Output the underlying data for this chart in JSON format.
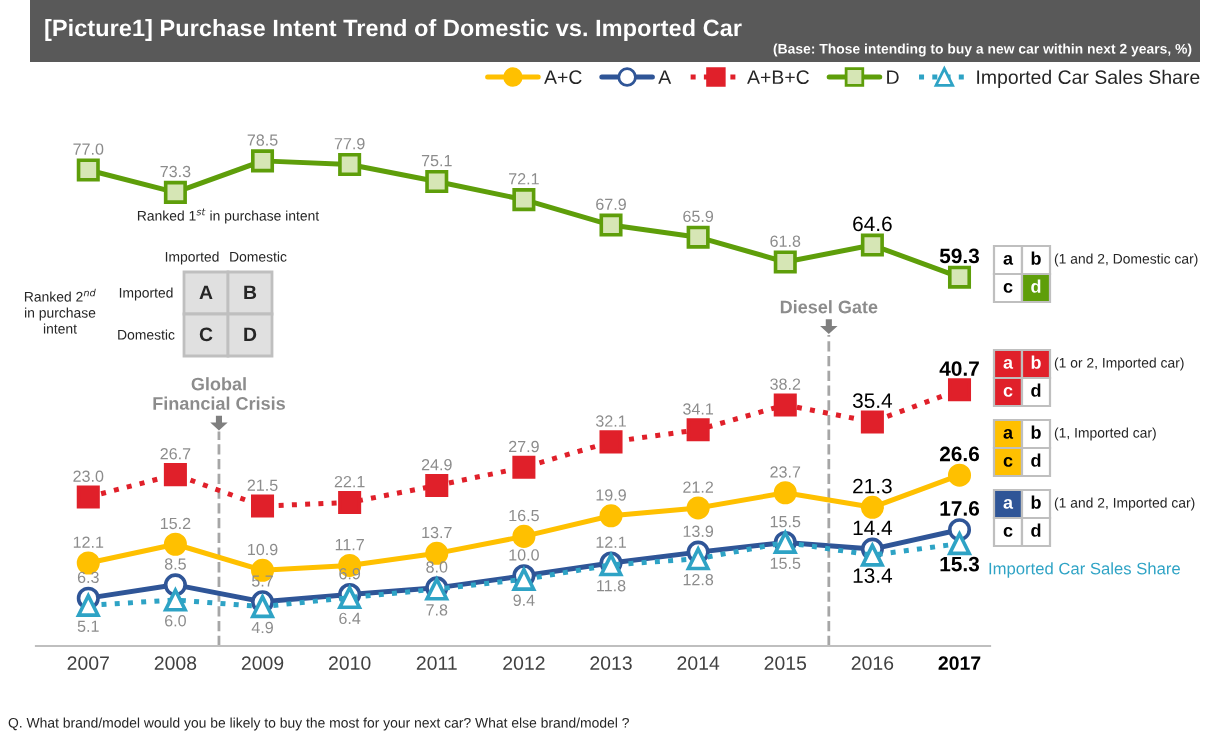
{
  "chart_data": {
    "type": "line",
    "title": "[Picture1] Purchase Intent Trend of Domestic vs. Imported Car",
    "subtitle": "(Base: Those intending to buy a new car within next 2 years, %)",
    "x": [
      2007,
      2008,
      2009,
      2010,
      2011,
      2012,
      2013,
      2014,
      2015,
      2016,
      2017
    ],
    "xlim": [
      2006.4,
      2017.35
    ],
    "xticks": [
      2007,
      2008,
      2009,
      2010,
      2011,
      2012,
      2013,
      2014,
      2015,
      2016,
      2017
    ],
    "tick_labels": "x",
    "grid": false,
    "legend": "top right",
    "series": [
      {
        "name": "A+C",
        "color": "#ffc000",
        "marker": "circle",
        "line_style": "solid",
        "values": [
          12.1,
          15.2,
          10.9,
          11.7,
          13.7,
          16.5,
          19.9,
          21.2,
          23.7,
          21.3,
          26.6
        ],
        "value_labels": [
          "12.1",
          "15.2",
          "10.9",
          "11.7",
          "13.7",
          "16.5",
          "19.9",
          "21.2",
          "23.7",
          "21.3",
          "26.6"
        ]
      },
      {
        "name": "A",
        "color": "#2f5597",
        "marker": "circle",
        "line_style": "solid",
        "values": [
          6.3,
          8.5,
          5.7,
          6.9,
          8.0,
          10.0,
          12.1,
          13.9,
          15.5,
          14.4,
          17.6
        ],
        "value_labels": [
          "6.3",
          "8.5",
          "5.7",
          "6.9",
          "8.0",
          "10.0",
          "12.1",
          "13.9",
          "15.5",
          "14.4",
          "17.6"
        ]
      },
      {
        "name": "A+B+C",
        "color": "#e0202a",
        "marker": "square",
        "line_style": "dotted",
        "values": [
          23.0,
          26.7,
          21.5,
          22.1,
          24.9,
          27.9,
          32.1,
          34.1,
          38.2,
          35.4,
          40.7
        ],
        "value_labels": [
          "23.0",
          "26.7",
          "21.5",
          "22.1",
          "24.9",
          "27.9",
          "32.1",
          "34.1",
          "38.2",
          "35.4",
          "40.7"
        ]
      },
      {
        "name": "D",
        "color": "#5e9e0a",
        "marker": "square",
        "line_style": "solid",
        "values": [
          77.0,
          73.3,
          78.5,
          77.9,
          75.1,
          72.1,
          67.9,
          65.9,
          61.8,
          64.6,
          59.3
        ],
        "value_labels": [
          "77.0",
          "73.3",
          "78.5",
          "77.9",
          "75.1",
          "72.1",
          "67.9",
          "65.9",
          "61.8",
          "64.6",
          "59.3"
        ]
      },
      {
        "name": "Imported Car Sales Share",
        "color": "#2ea3c5",
        "marker": "triangle",
        "line_style": "dotted",
        "values": [
          5.1,
          6.0,
          4.9,
          6.4,
          7.8,
          9.4,
          11.8,
          12.8,
          15.5,
          13.4,
          15.3
        ],
        "value_labels": [
          "5.1",
          "6.0",
          "4.9",
          "6.4",
          "7.8",
          "9.4",
          "11.8",
          "12.8",
          "15.5",
          "13.4",
          "15.3"
        ]
      }
    ],
    "ref_lines": [
      {
        "axis": "x",
        "value": 2008.5,
        "label": "Global\nFinancial Crisis",
        "color": "#a6a6a6",
        "line_style": "dashed"
      },
      {
        "axis": "x",
        "value": 2015.5,
        "label": "Diesel Gate",
        "color": "#a6a6a6",
        "line_style": "dashed"
      }
    ],
    "annotations": [
      "Ranked 1$^{st}$ in purchase intent",
      "Imported",
      "Domestic",
      "Ranked 2$^{nd}$\nin purchase\nintent",
      "Imported",
      "Domestic",
      "A",
      "B",
      "C",
      "D",
      "(1 and 2, Domestic car)",
      "(1 or 2, Imported car)",
      "(1, Imported car)",
      "(1 and 2, Imported car)",
      "a",
      "b",
      "c",
      "d",
      "a",
      "b",
      "c",
      "d",
      "a",
      "b",
      "c",
      "d",
      "a",
      "b",
      "c",
      "d",
      "Q. What brand/model would you be likely to buy the most for your next car? What else brand/model ?"
    ]
  }
}
